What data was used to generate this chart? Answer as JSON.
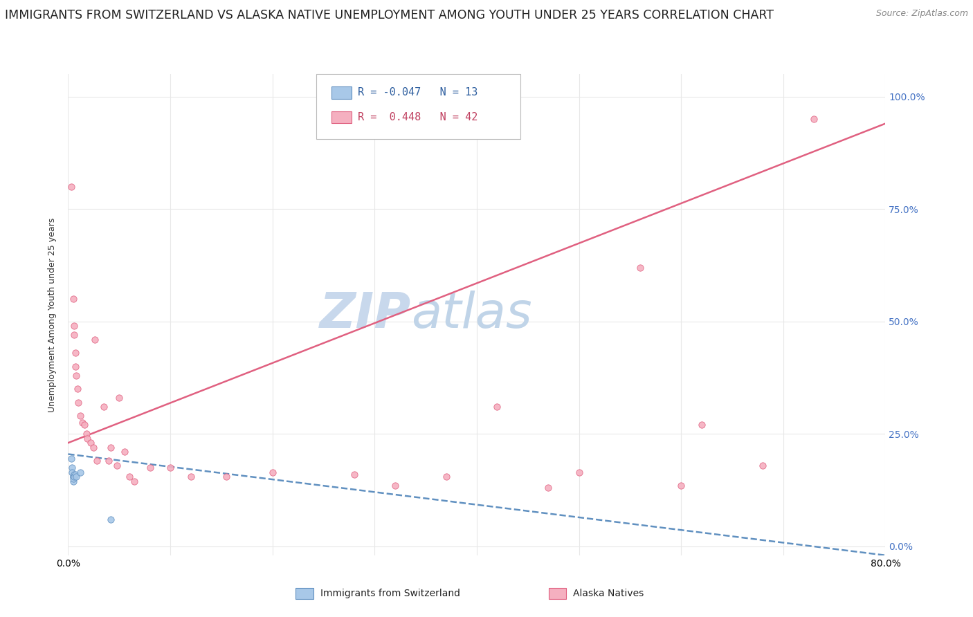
{
  "title": "IMMIGRANTS FROM SWITZERLAND VS ALASKA NATIVE UNEMPLOYMENT AMONG YOUTH UNDER 25 YEARS CORRELATION CHART",
  "source": "Source: ZipAtlas.com",
  "ylabel": "Unemployment Among Youth under 25 years",
  "xlim": [
    0.0,
    0.8
  ],
  "ylim": [
    -0.02,
    1.05
  ],
  "x_ticks": [
    0.0,
    0.1,
    0.2,
    0.3,
    0.4,
    0.5,
    0.6,
    0.7,
    0.8
  ],
  "y_ticks": [
    0.0,
    0.25,
    0.5,
    0.75,
    1.0
  ],
  "y_tick_labels_right": [
    "0.0%",
    "25.0%",
    "50.0%",
    "75.0%",
    "100.0%"
  ],
  "watermark1": "ZIP",
  "watermark2": "atlas",
  "legend_R1": "-0.047",
  "legend_N1": "13",
  "legend_R2": "0.448",
  "legend_N2": "42",
  "color_swiss": "#a8c8e8",
  "color_alaska": "#f5b0c0",
  "edge_swiss": "#6090c0",
  "edge_alaska": "#e06080",
  "swiss_x": [
    0.003,
    0.004,
    0.004,
    0.005,
    0.005,
    0.005,
    0.005,
    0.006,
    0.006,
    0.007,
    0.008,
    0.012,
    0.042
  ],
  "swiss_y": [
    0.195,
    0.175,
    0.165,
    0.155,
    0.155,
    0.145,
    0.15,
    0.16,
    0.155,
    0.16,
    0.155,
    0.165,
    0.06
  ],
  "alaska_x": [
    0.003,
    0.005,
    0.006,
    0.006,
    0.007,
    0.007,
    0.008,
    0.009,
    0.01,
    0.012,
    0.014,
    0.016,
    0.018,
    0.019,
    0.022,
    0.025,
    0.026,
    0.028,
    0.035,
    0.04,
    0.042,
    0.048,
    0.05,
    0.055,
    0.06,
    0.065,
    0.08,
    0.1,
    0.12,
    0.155,
    0.2,
    0.28,
    0.32,
    0.37,
    0.42,
    0.47,
    0.5,
    0.56,
    0.6,
    0.62,
    0.68,
    0.73
  ],
  "alaska_y": [
    0.8,
    0.55,
    0.49,
    0.47,
    0.43,
    0.4,
    0.38,
    0.35,
    0.32,
    0.29,
    0.275,
    0.27,
    0.25,
    0.24,
    0.23,
    0.22,
    0.46,
    0.19,
    0.31,
    0.19,
    0.22,
    0.18,
    0.33,
    0.21,
    0.155,
    0.145,
    0.175,
    0.175,
    0.155,
    0.155,
    0.165,
    0.16,
    0.135,
    0.155,
    0.31,
    0.13,
    0.165,
    0.62,
    0.135,
    0.27,
    0.18,
    0.95
  ],
  "swiss_trend_x": [
    0.0,
    0.8
  ],
  "swiss_trend_y": [
    0.205,
    -0.02
  ],
  "alaska_trend_x": [
    0.0,
    0.8
  ],
  "alaska_trend_y": [
    0.23,
    0.94
  ],
  "grid_color": "#e8e8e8",
  "background_color": "#ffffff",
  "dot_size": 45,
  "title_fontsize": 12.5,
  "axis_fontsize": 10,
  "watermark_color1": "#c8d8ec",
  "watermark_color2": "#c0d4e8"
}
